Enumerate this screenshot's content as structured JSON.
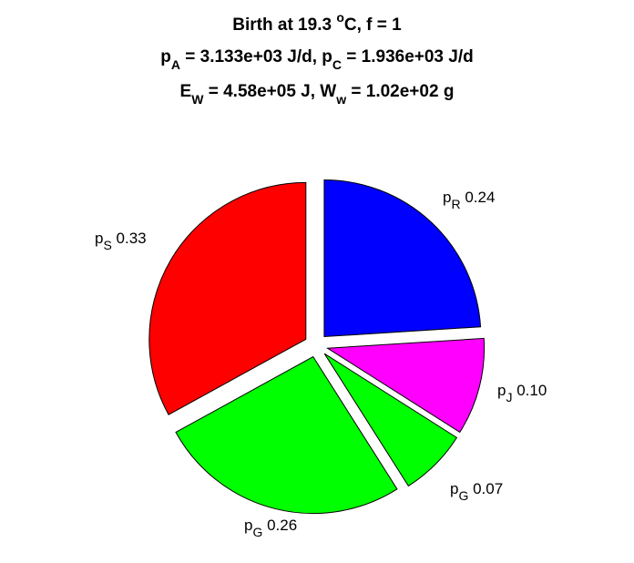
{
  "chart_data": {
    "type": "pie",
    "title_lines": [
      [
        {
          "t": "Birth at 19.3 "
        },
        {
          "t": "o",
          "s": "sup"
        },
        {
          "t": "C, f = 1"
        }
      ],
      [
        {
          "t": "p"
        },
        {
          "t": "A",
          "s": "sub"
        },
        {
          "t": " = 3.133e+03 J/d, p"
        },
        {
          "t": "C",
          "s": "sub"
        },
        {
          "t": " = 1.936e+03 J/d"
        }
      ],
      [
        {
          "t": "E"
        },
        {
          "t": "W",
          "s": "sub"
        },
        {
          "t": " = 4.58e+05 J, W"
        },
        {
          "t": "w",
          "s": "sub"
        },
        {
          "t": " = 1.02e+02 g"
        }
      ]
    ],
    "slices": [
      {
        "symbol": "p",
        "sub": "R",
        "value": 0.24,
        "value_label": "0.24",
        "color": "#0000FF"
      },
      {
        "symbol": "p",
        "sub": "J",
        "value": 0.1,
        "value_label": "0.10",
        "color": "#FF00FF"
      },
      {
        "symbol": "p",
        "sub": "G",
        "value": 0.07,
        "value_label": "0.07",
        "color": "#00FF00"
      },
      {
        "symbol": "p",
        "sub": "G",
        "value": 0.26,
        "value_label": "0.26",
        "color": "#00FF00"
      },
      {
        "symbol": "p",
        "sub": "S",
        "value": 0.33,
        "value_label": "0.33",
        "color": "#FF0000"
      }
    ],
    "start_angle": "12 o'clock",
    "direction": "clockwise",
    "exploded": true,
    "edge_color": "#000000"
  }
}
